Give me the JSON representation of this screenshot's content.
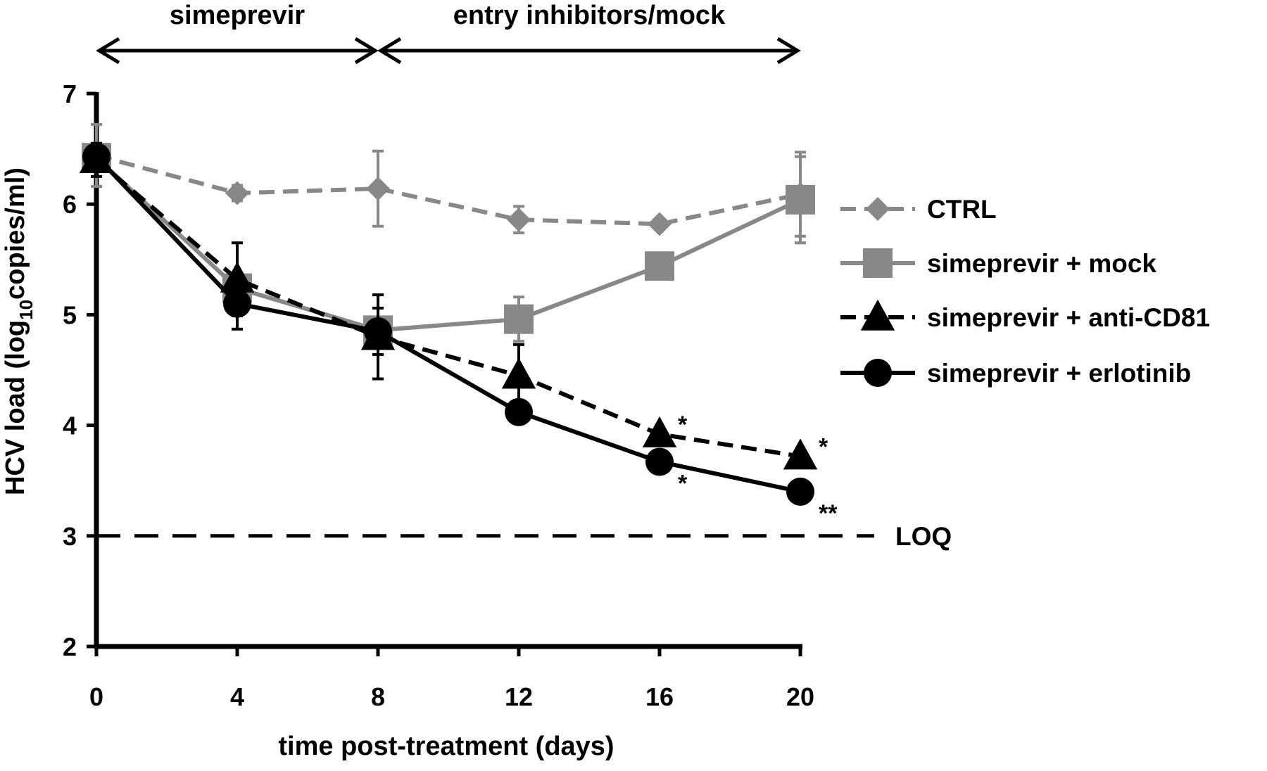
{
  "chart_data": {
    "type": "line",
    "title": "",
    "xlabel": "time post-treatment (days)",
    "ylabel_main": "HCV load (log",
    "ylabel_sub": "10",
    "ylabel_end": "copies/ml)",
    "xlim": [
      0,
      20
    ],
    "ylim": [
      2,
      7
    ],
    "x_ticks": [
      0,
      4,
      8,
      12,
      16,
      20
    ],
    "y_ticks": [
      2,
      3,
      4,
      5,
      6,
      7
    ],
    "grid": false,
    "legend_position": "right",
    "x": [
      0,
      4,
      8,
      12,
      16,
      20
    ],
    "series": [
      {
        "name": "CTRL",
        "marker": "diamond",
        "line_style": "dashed",
        "color": "#888888",
        "values": [
          6.44,
          6.1,
          6.14,
          5.86,
          5.82,
          6.09
        ],
        "error": [
          0.28,
          0.07,
          0.34,
          0.12,
          0.0,
          0.38
        ]
      },
      {
        "name": "simeprevir + mock",
        "marker": "square",
        "line_style": "solid",
        "color": "#888888",
        "values": [
          6.42,
          5.24,
          4.86,
          4.96,
          5.44,
          6.04
        ],
        "error": [
          0.0,
          0.0,
          0.0,
          0.2,
          0.0,
          0.39
        ]
      },
      {
        "name": "simeprevir + anti-CD81",
        "marker": "triangle",
        "line_style": "dashed",
        "color": "#000000",
        "values": [
          6.4,
          5.32,
          4.8,
          4.45,
          3.92,
          3.72
        ],
        "error": [
          0.15,
          0.33,
          0.38,
          0.28,
          0.0,
          0.0
        ]
      },
      {
        "name": "simeprevir + erlotinib",
        "marker": "circle",
        "line_style": "solid",
        "color": "#000000",
        "values": [
          6.43,
          5.1,
          4.85,
          4.12,
          3.67,
          3.4
        ],
        "error": [
          0.0,
          0.23,
          0.21,
          0.08,
          0.05,
          0.0
        ]
      }
    ],
    "reference_line": {
      "y": 3,
      "label": "LOQ",
      "line_style": "dashed"
    },
    "annotations": [
      {
        "text": "*",
        "series": "simeprevir + anti-CD81",
        "x": 16
      },
      {
        "text": "*",
        "series": "simeprevir + anti-CD81",
        "x": 20
      },
      {
        "text": "*",
        "series": "simeprevir + erlotinib",
        "x": 16
      },
      {
        "text": "**",
        "series": "simeprevir + erlotinib",
        "x": 20
      }
    ],
    "phases": [
      {
        "label": "simeprevir",
        "x_start": 0,
        "x_end": 8
      },
      {
        "label": "entry inhibitors/mock",
        "x_start": 8,
        "x_end": 20
      }
    ]
  }
}
